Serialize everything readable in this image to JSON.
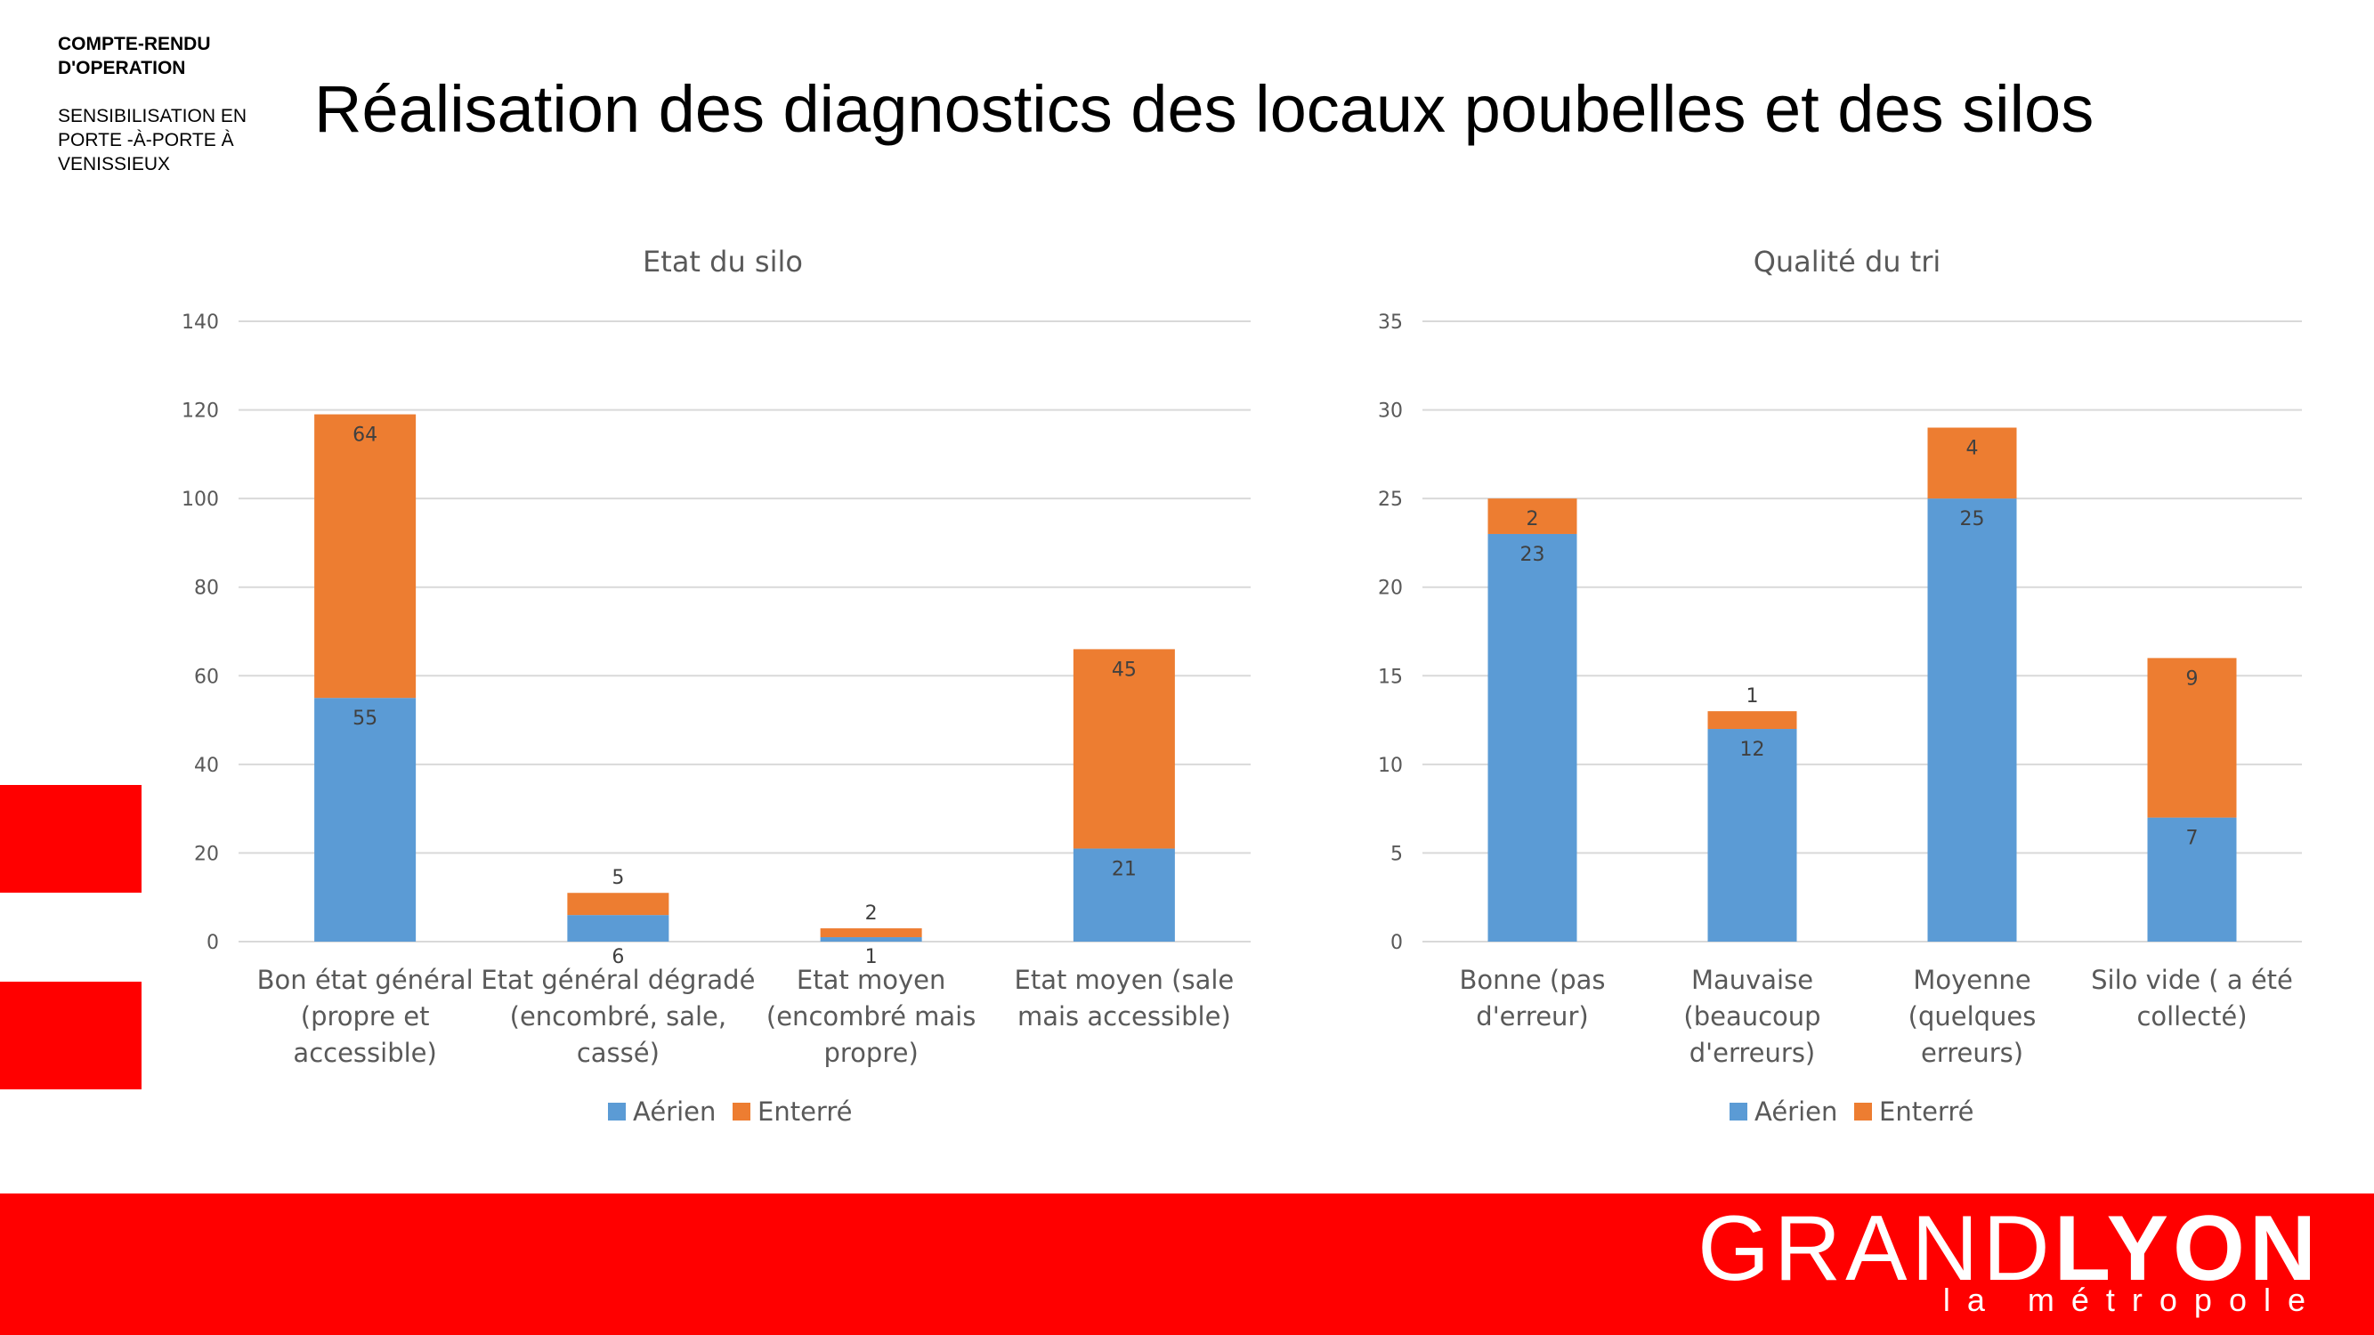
{
  "header": {
    "doc_type": "COMPTE-RENDU D'OPERATION",
    "operation": "SENSIBILISATION EN PORTE -À-PORTE À VENISSIEUX",
    "title": "Réalisation des diagnostics des locaux poubelles et des silos"
  },
  "colors": {
    "aerien": "#5B9BD5",
    "enterre": "#ED7D31",
    "brand_red": "#FF0000",
    "grid": "#D9D9D9"
  },
  "footer": {
    "logo_light": "GRAND",
    "logo_bold": "LYON",
    "logo_sub": "la métropole"
  },
  "chart_data": [
    {
      "type": "bar",
      "stacked": true,
      "title": "Etat du silo",
      "categories": [
        [
          "Bon état général",
          "(propre et",
          "accessible)"
        ],
        [
          "Etat général dégradé",
          "(encombré, sale,",
          "cassé)"
        ],
        [
          "Etat moyen",
          "(encombré mais",
          "propre)"
        ],
        [
          "Etat moyen (sale",
          "mais accessible)"
        ]
      ],
      "series": [
        {
          "name": "Aérien",
          "values": [
            55,
            6,
            1,
            21
          ]
        },
        {
          "name": "Enterré",
          "values": [
            64,
            5,
            2,
            45
          ]
        }
      ],
      "ylim": [
        0,
        140
      ],
      "yticks": [
        0,
        20,
        40,
        60,
        80,
        100,
        120,
        140
      ],
      "grid": true,
      "legend": "bottom"
    },
    {
      "type": "bar",
      "stacked": true,
      "title": "Qualité du tri",
      "categories": [
        [
          "Bonne (pas",
          "d'erreur)"
        ],
        [
          "Mauvaise",
          "(beaucoup",
          "d'erreurs)"
        ],
        [
          "Moyenne",
          "(quelques",
          "erreurs)"
        ],
        [
          "Silo vide ( a été",
          "collecté)"
        ]
      ],
      "series": [
        {
          "name": "Aérien",
          "values": [
            23,
            12,
            25,
            7
          ]
        },
        {
          "name": "Enterré",
          "values": [
            2,
            1,
            4,
            9
          ]
        }
      ],
      "ylim": [
        0,
        35
      ],
      "yticks": [
        0,
        5,
        10,
        15,
        20,
        25,
        30,
        35
      ],
      "grid": true,
      "legend": "bottom"
    }
  ]
}
